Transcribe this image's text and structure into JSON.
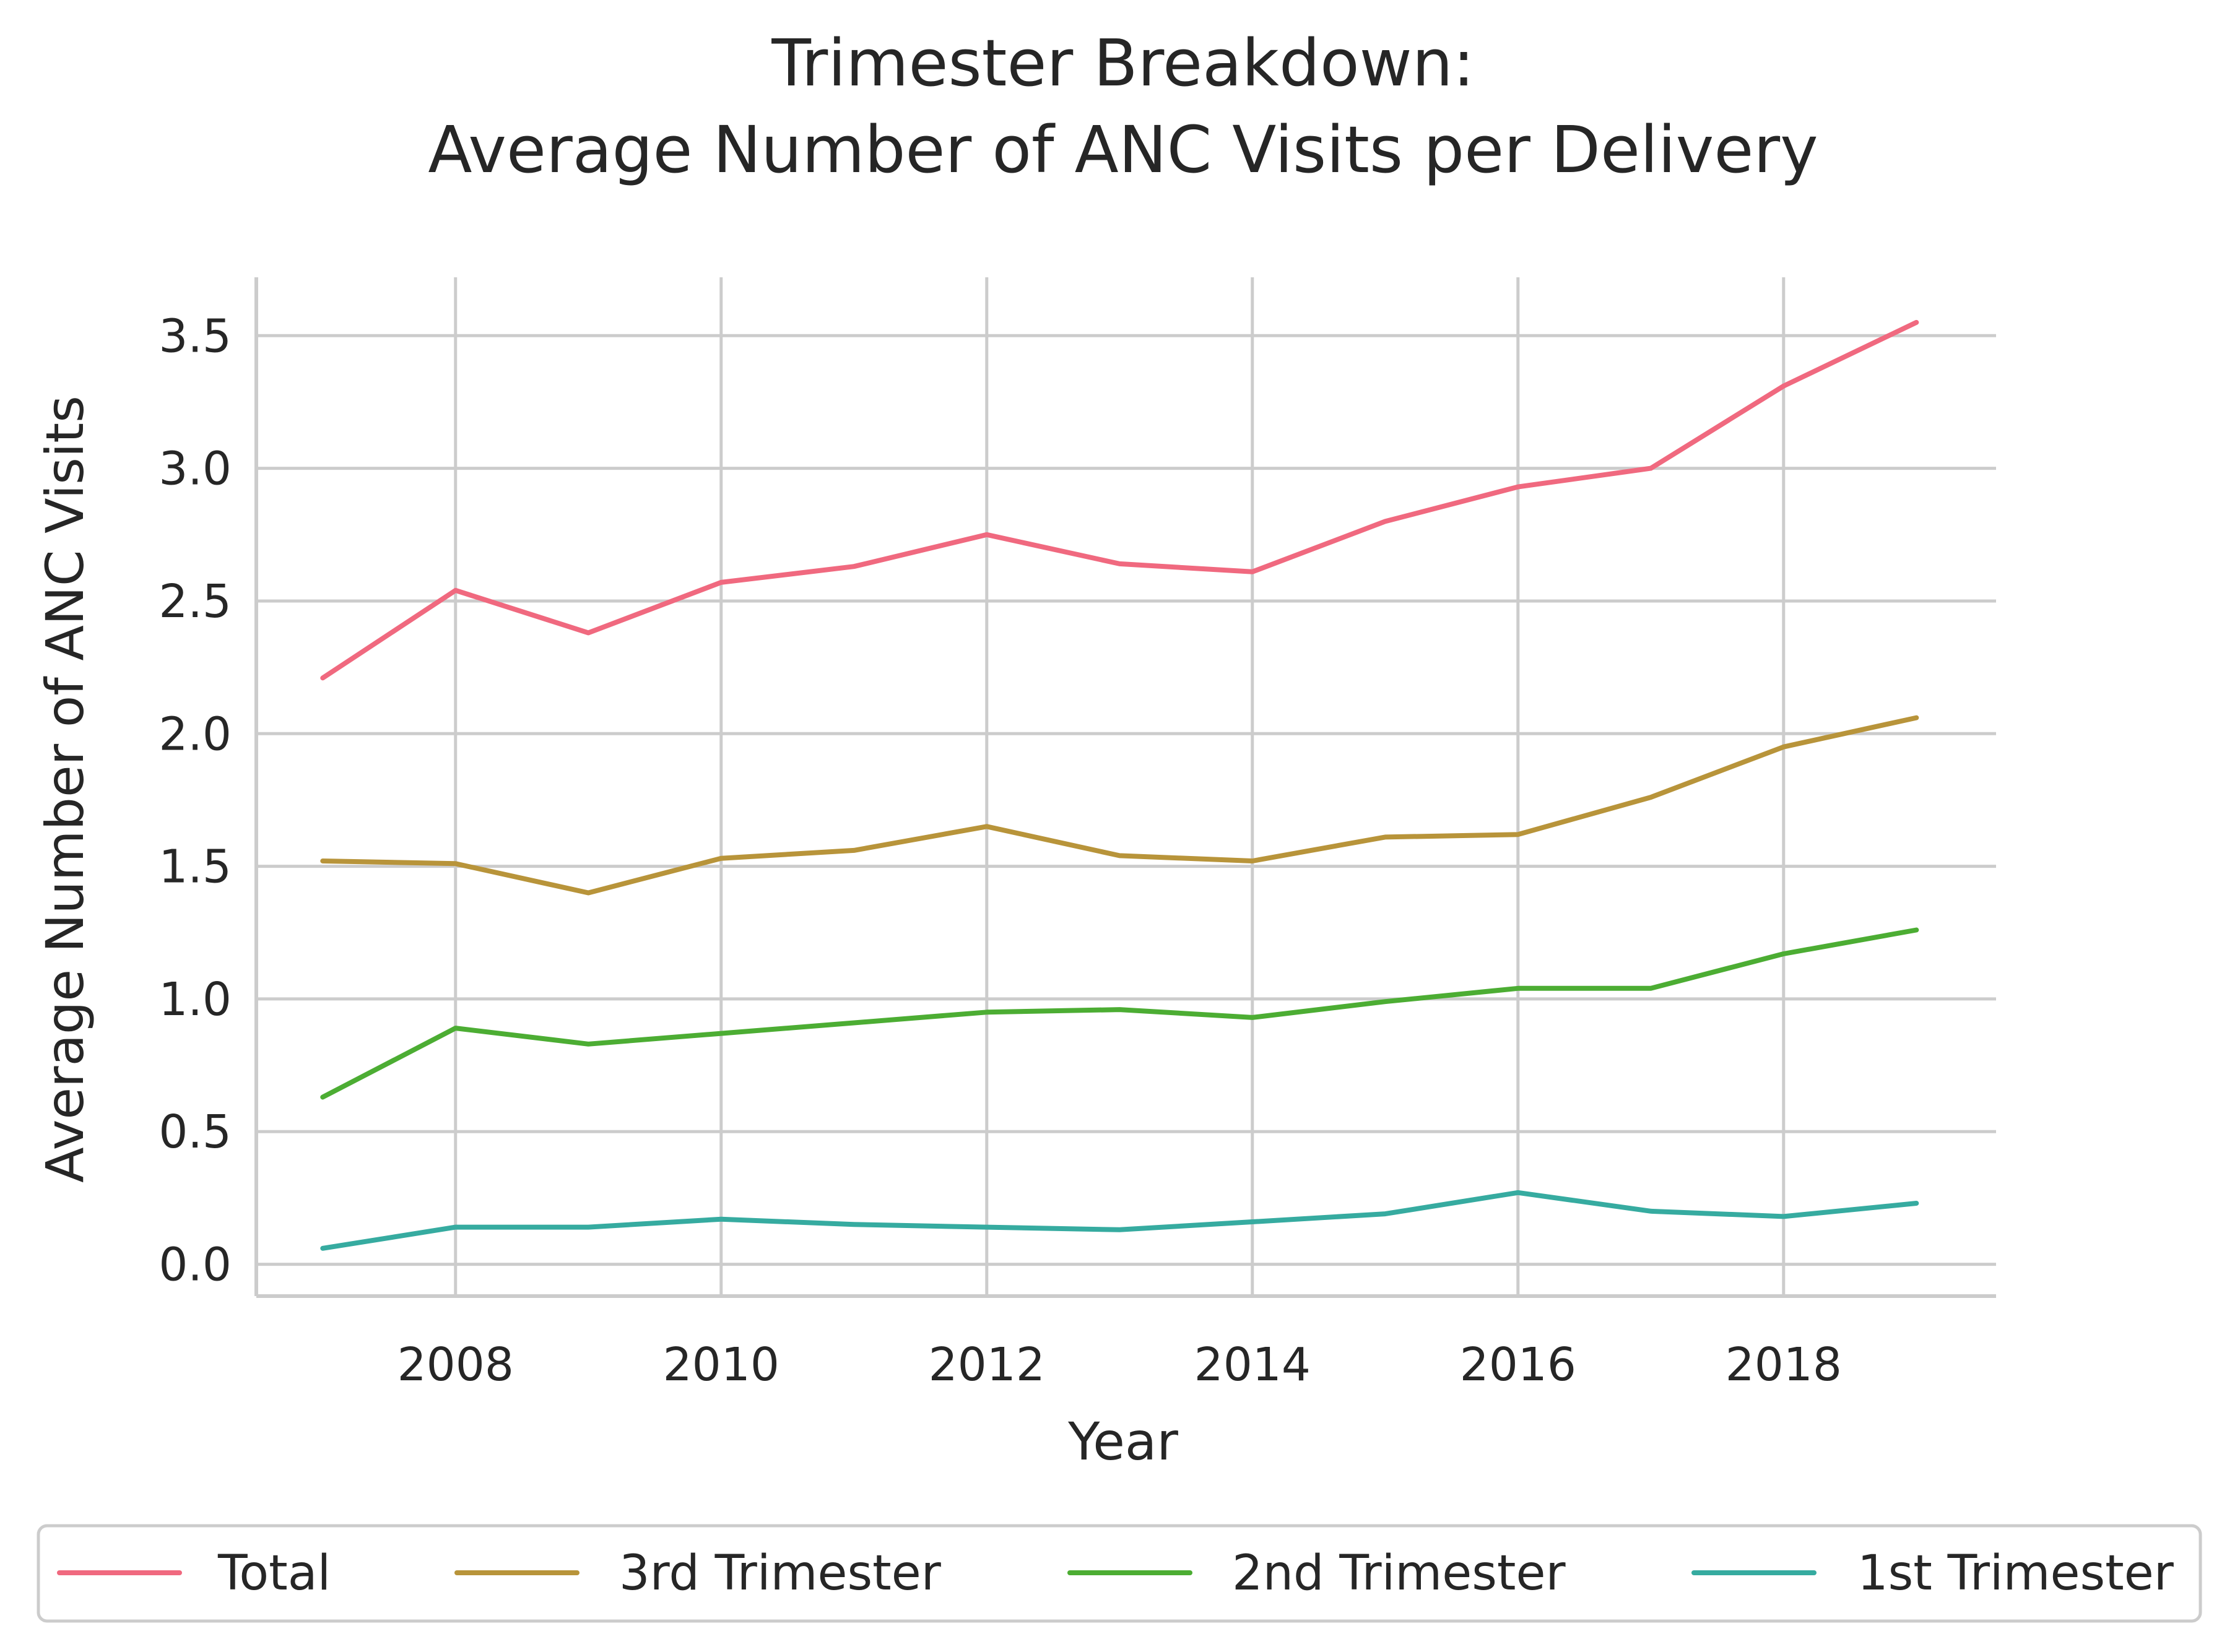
{
  "chart_data": {
    "type": "line",
    "title": [
      "Trimester Breakdown:",
      "Average Number of ANC Visits per Delivery"
    ],
    "xlabel": "Year",
    "ylabel": "Average Number of ANC Visits",
    "xlim": [
      2006.5,
      2019.6
    ],
    "ylim": [
      -0.12,
      3.72
    ],
    "x_ticks": [
      2008,
      2010,
      2012,
      2014,
      2016,
      2018
    ],
    "y_ticks": [
      0.0,
      0.5,
      1.0,
      1.5,
      2.0,
      2.5,
      3.0,
      3.5
    ],
    "y_tick_labels": [
      "0.0",
      "0.5",
      "1.0",
      "1.5",
      "2.0",
      "2.5",
      "3.0",
      "3.5"
    ],
    "grid": true,
    "legend_placement": "bottom-center",
    "x": [
      2007,
      2008,
      2009,
      2010,
      2011,
      2012,
      2013,
      2014,
      2015,
      2016,
      2017,
      2018,
      2019
    ],
    "series": [
      {
        "name": "Total",
        "color": "#f0697f",
        "values": [
          2.21,
          2.54,
          2.38,
          2.57,
          2.63,
          2.75,
          2.64,
          2.61,
          2.8,
          2.93,
          3.0,
          3.31,
          3.55
        ]
      },
      {
        "name": "3rd Trimester",
        "color": "#b8943a",
        "values": [
          1.52,
          1.51,
          1.4,
          1.53,
          1.56,
          1.65,
          1.54,
          1.52,
          1.61,
          1.62,
          1.76,
          1.95,
          2.06
        ]
      },
      {
        "name": "2nd Trimester",
        "color": "#4cad33",
        "values": [
          0.63,
          0.89,
          0.83,
          0.87,
          0.91,
          0.95,
          0.96,
          0.93,
          0.99,
          1.04,
          1.04,
          1.17,
          1.26
        ]
      },
      {
        "name": "1st Trimester",
        "color": "#36aba0",
        "values": [
          0.06,
          0.14,
          0.14,
          0.17,
          0.15,
          0.14,
          0.13,
          0.16,
          0.19,
          0.27,
          0.2,
          0.18,
          0.23
        ]
      }
    ]
  }
}
